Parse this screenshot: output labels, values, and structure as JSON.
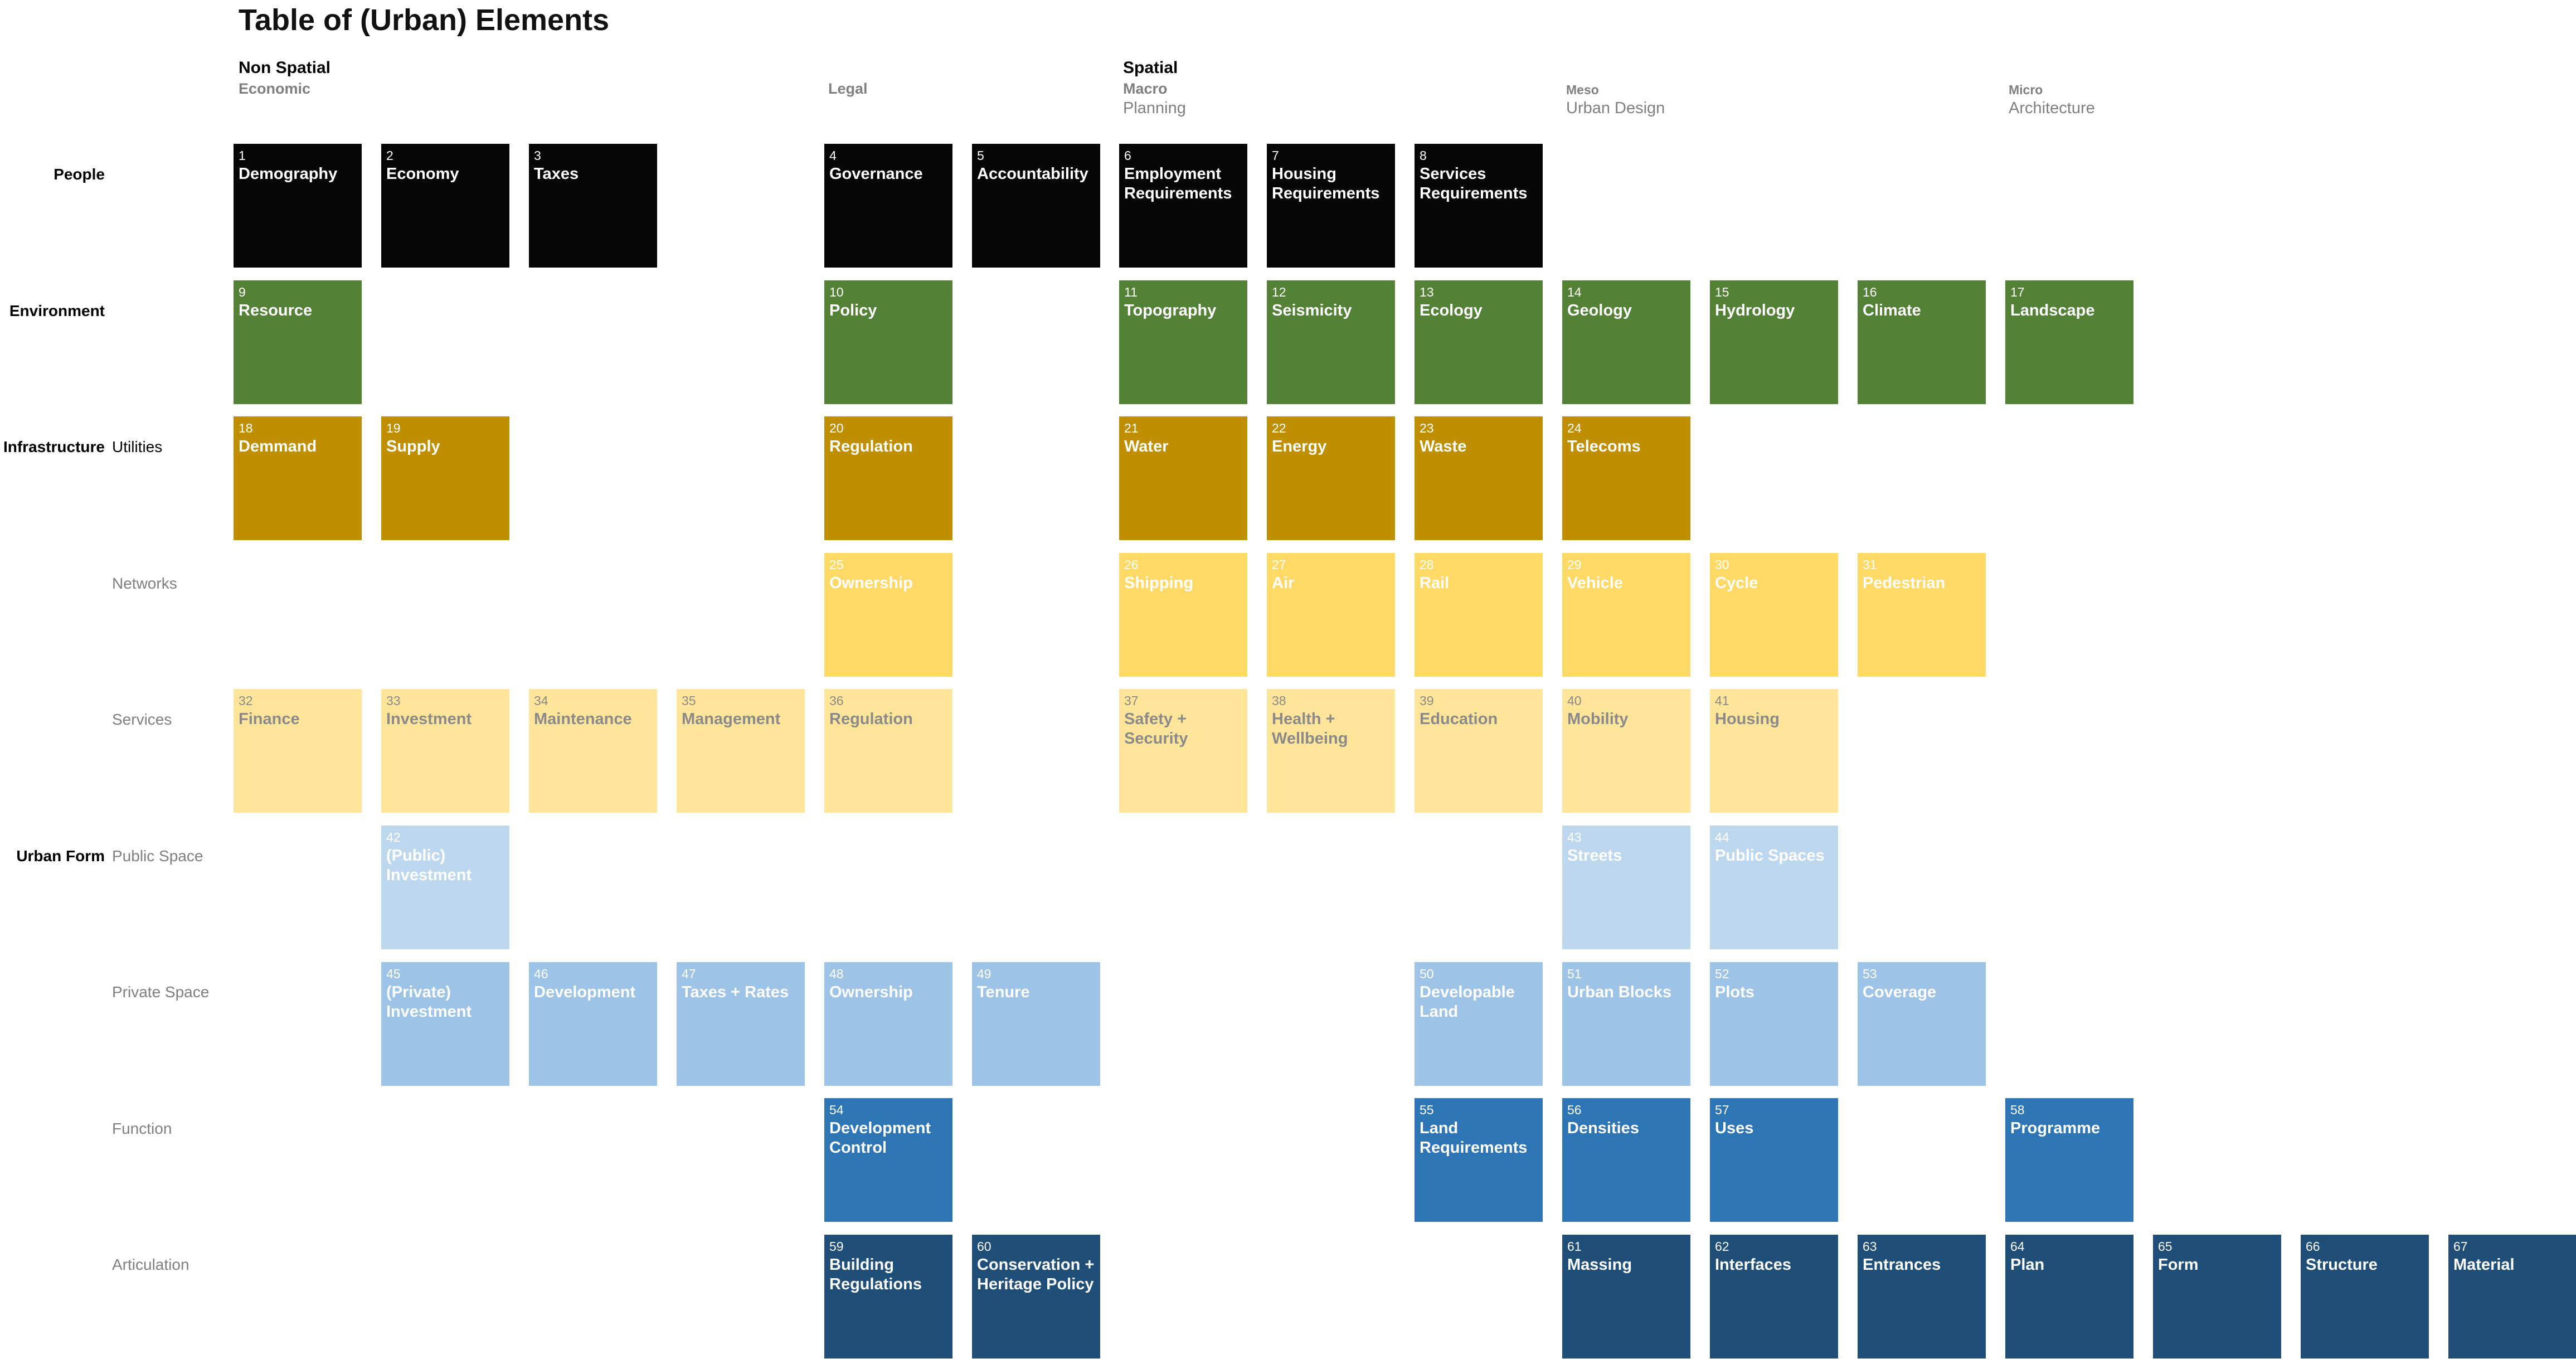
{
  "title": "Table of (Urban) Elements",
  "headers": {
    "non_spatial": "Non Spatial",
    "economic": "Economic",
    "legal": "Legal",
    "spatial": "Spatial",
    "macro": "Macro",
    "planning": "Planning",
    "meso": "Meso",
    "urban_design": "Urban Design",
    "micro": "Micro",
    "architecture": "Architecture"
  },
  "row_labels": {
    "people": "People",
    "environment": "Environment",
    "infrastructure": "Infrastructure",
    "urban_form": "Urban Form"
  },
  "sub_labels": {
    "utilities": "Utilities",
    "networks": "Networks",
    "services": "Services",
    "public_space": "Public Space",
    "private_space": "Private Space",
    "function": "Function",
    "articulation": "Articulation"
  },
  "colors": {
    "people": "#060606",
    "environment": "#538135",
    "utilities": "#bf8f00",
    "networks": "#ffd966",
    "services": "#ffe599",
    "public_space": "#bdd7ee",
    "private_space": "#9dc3e6",
    "function": "#2e75b6",
    "articulation": "#1f4e79"
  },
  "elements": [
    {
      "num": "1",
      "name": "Demography",
      "row": 0,
      "col": 0,
      "group": "people"
    },
    {
      "num": "2",
      "name": "Economy",
      "row": 0,
      "col": 1,
      "group": "people"
    },
    {
      "num": "3",
      "name": "Taxes",
      "row": 0,
      "col": 2,
      "group": "people"
    },
    {
      "num": "4",
      "name": "Governance",
      "row": 0,
      "col": 4,
      "group": "people"
    },
    {
      "num": "5",
      "name": "Accountability",
      "row": 0,
      "col": 5,
      "group": "people"
    },
    {
      "num": "6",
      "name": "Employment\nRequirements",
      "row": 0,
      "col": 6,
      "group": "people"
    },
    {
      "num": "7",
      "name": "Housing\nRequirements",
      "row": 0,
      "col": 7,
      "group": "people"
    },
    {
      "num": "8",
      "name": "Services\nRequirements",
      "row": 0,
      "col": 8,
      "group": "people"
    },
    {
      "num": "9",
      "name": "Resource",
      "row": 1,
      "col": 0,
      "group": "environment"
    },
    {
      "num": "10",
      "name": "Policy",
      "row": 1,
      "col": 4,
      "group": "environment"
    },
    {
      "num": "11",
      "name": "Topography",
      "row": 1,
      "col": 6,
      "group": "environment"
    },
    {
      "num": "12",
      "name": "Seismicity",
      "row": 1,
      "col": 7,
      "group": "environment"
    },
    {
      "num": "13",
      "name": "Ecology",
      "row": 1,
      "col": 8,
      "group": "environment"
    },
    {
      "num": "14",
      "name": "Geology",
      "row": 1,
      "col": 9,
      "group": "environment"
    },
    {
      "num": "15",
      "name": "Hydrology",
      "row": 1,
      "col": 10,
      "group": "environment"
    },
    {
      "num": "16",
      "name": "Climate",
      "row": 1,
      "col": 11,
      "group": "environment"
    },
    {
      "num": "17",
      "name": "Landscape",
      "row": 1,
      "col": 12,
      "group": "environment"
    },
    {
      "num": "18",
      "name": "Demmand",
      "row": 2,
      "col": 0,
      "group": "utilities"
    },
    {
      "num": "19",
      "name": "Supply",
      "row": 2,
      "col": 1,
      "group": "utilities"
    },
    {
      "num": "20",
      "name": "Regulation",
      "row": 2,
      "col": 4,
      "group": "utilities"
    },
    {
      "num": "21",
      "name": "Water",
      "row": 2,
      "col": 6,
      "group": "utilities"
    },
    {
      "num": "22",
      "name": "Energy",
      "row": 2,
      "col": 7,
      "group": "utilities"
    },
    {
      "num": "23",
      "name": "Waste",
      "row": 2,
      "col": 8,
      "group": "utilities"
    },
    {
      "num": "24",
      "name": "Telecoms",
      "row": 2,
      "col": 9,
      "group": "utilities"
    },
    {
      "num": "25",
      "name": "Ownership",
      "row": 3,
      "col": 4,
      "group": "networks"
    },
    {
      "num": "26",
      "name": "Shipping",
      "row": 3,
      "col": 6,
      "group": "networks"
    },
    {
      "num": "27",
      "name": "Air",
      "row": 3,
      "col": 7,
      "group": "networks"
    },
    {
      "num": "28",
      "name": "Rail",
      "row": 3,
      "col": 8,
      "group": "networks"
    },
    {
      "num": "29",
      "name": "Vehicle",
      "row": 3,
      "col": 9,
      "group": "networks"
    },
    {
      "num": "30",
      "name": "Cycle",
      "row": 3,
      "col": 10,
      "group": "networks"
    },
    {
      "num": "31",
      "name": "Pedestrian",
      "row": 3,
      "col": 11,
      "group": "networks"
    },
    {
      "num": "32",
      "name": "Finance",
      "row": 4,
      "col": 0,
      "group": "services"
    },
    {
      "num": "33",
      "name": "Investment",
      "row": 4,
      "col": 1,
      "group": "services"
    },
    {
      "num": "34",
      "name": "Maintenance",
      "row": 4,
      "col": 2,
      "group": "services"
    },
    {
      "num": "35",
      "name": "Management",
      "row": 4,
      "col": 3,
      "group": "services"
    },
    {
      "num": "36",
      "name": "Regulation",
      "row": 4,
      "col": 4,
      "group": "services"
    },
    {
      "num": "37",
      "name": "Safety +\nSecurity",
      "row": 4,
      "col": 6,
      "group": "services"
    },
    {
      "num": "38",
      "name": "Health +\nWellbeing",
      "row": 4,
      "col": 7,
      "group": "services"
    },
    {
      "num": "39",
      "name": "Education",
      "row": 4,
      "col": 8,
      "group": "services"
    },
    {
      "num": "40",
      "name": "Mobility",
      "row": 4,
      "col": 9,
      "group": "services"
    },
    {
      "num": "41",
      "name": "Housing",
      "row": 4,
      "col": 10,
      "group": "services"
    },
    {
      "num": "42",
      "name": "(Public)\nInvestment",
      "row": 5,
      "col": 1,
      "group": "public_space"
    },
    {
      "num": "43",
      "name": "Streets",
      "row": 5,
      "col": 9,
      "group": "public_space"
    },
    {
      "num": "44",
      "name": "Public Spaces",
      "row": 5,
      "col": 10,
      "group": "public_space"
    },
    {
      "num": "45",
      "name": "(Private)\nInvestment",
      "row": 6,
      "col": 1,
      "group": "private_space"
    },
    {
      "num": "46",
      "name": "Development",
      "row": 6,
      "col": 2,
      "group": "private_space"
    },
    {
      "num": "47",
      "name": "Taxes + Rates",
      "row": 6,
      "col": 3,
      "group": "private_space"
    },
    {
      "num": "48",
      "name": "Ownership",
      "row": 6,
      "col": 4,
      "group": "private_space"
    },
    {
      "num": "49",
      "name": "Tenure",
      "row": 6,
      "col": 5,
      "group": "private_space"
    },
    {
      "num": "50",
      "name": "Developable\nLand",
      "row": 6,
      "col": 8,
      "group": "private_space"
    },
    {
      "num": "51",
      "name": "Urban Blocks",
      "row": 6,
      "col": 9,
      "group": "private_space"
    },
    {
      "num": "52",
      "name": "Plots",
      "row": 6,
      "col": 10,
      "group": "private_space"
    },
    {
      "num": "53",
      "name": "Coverage",
      "row": 6,
      "col": 11,
      "group": "private_space"
    },
    {
      "num": "54",
      "name": "Development\nControl",
      "row": 7,
      "col": 4,
      "group": "function"
    },
    {
      "num": "55",
      "name": "Land\nRequirements",
      "row": 7,
      "col": 8,
      "group": "function"
    },
    {
      "num": "56",
      "name": "Densities",
      "row": 7,
      "col": 9,
      "group": "function"
    },
    {
      "num": "57",
      "name": "Uses",
      "row": 7,
      "col": 10,
      "group": "function"
    },
    {
      "num": "58",
      "name": "Programme",
      "row": 7,
      "col": 12,
      "group": "function"
    },
    {
      "num": "59",
      "name": "Building\nRegulations",
      "row": 8,
      "col": 4,
      "group": "articulation"
    },
    {
      "num": "60",
      "name": "Conservation +\nHeritage Policy",
      "row": 8,
      "col": 5,
      "group": "articulation"
    },
    {
      "num": "61",
      "name": "Massing",
      "row": 8,
      "col": 9,
      "group": "articulation"
    },
    {
      "num": "62",
      "name": "Interfaces",
      "row": 8,
      "col": 10,
      "group": "articulation"
    },
    {
      "num": "63",
      "name": "Entrances",
      "row": 8,
      "col": 11,
      "group": "articulation"
    },
    {
      "num": "64",
      "name": "Plan",
      "row": 8,
      "col": 12,
      "group": "articulation"
    },
    {
      "num": "65",
      "name": "Form",
      "row": 8,
      "col": 13,
      "group": "articulation"
    },
    {
      "num": "66",
      "name": "Structure",
      "row": 8,
      "col": 14,
      "group": "articulation"
    },
    {
      "num": "67",
      "name": "Material",
      "row": 8,
      "col": 15,
      "group": "articulation"
    }
  ]
}
